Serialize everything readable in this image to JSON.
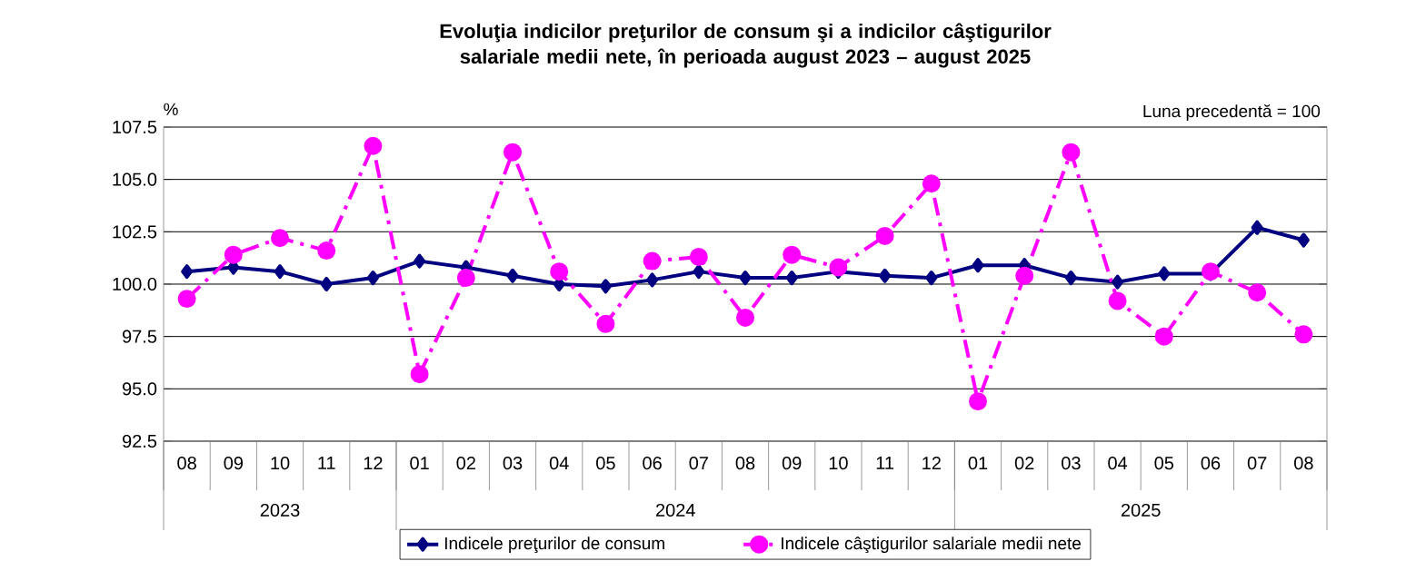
{
  "chart_data": {
    "type": "line",
    "title": "Evoluţia indicilor preţurilor de consum şi a indicilor câştigurilor salariale medii nete, în perioada august 2023 – august 2025",
    "ylabel": "%",
    "categories": [
      "08",
      "09",
      "10",
      "11",
      "12",
      "01",
      "02",
      "03",
      "04",
      "05",
      "06",
      "07",
      "08",
      "09",
      "10",
      "11",
      "12",
      "01",
      "02",
      "03",
      "04",
      "05",
      "06",
      "07",
      "08"
    ],
    "annotations": [
      "Luna precedentă = 100",
      "2023",
      "2024",
      "2025"
    ],
    "series": [
      {
        "name": "Indicele preţurilor de consum",
        "color": "#000080",
        "marker": "diamond",
        "line_style": "solid",
        "values": [
          100.6,
          100.8,
          100.6,
          100.0,
          100.3,
          101.1,
          100.8,
          100.4,
          100.0,
          99.9,
          100.2,
          100.6,
          100.3,
          100.3,
          100.6,
          100.4,
          100.3,
          100.9,
          100.9,
          100.3,
          100.1,
          100.5,
          100.5,
          102.7,
          102.1
        ]
      },
      {
        "name": "Indicele câştigurilor salariale medii nete",
        "color": "#ff00ff",
        "marker": "circle",
        "line_style": "dashed",
        "values": [
          99.3,
          101.4,
          102.2,
          101.6,
          106.6,
          95.7,
          100.3,
          106.3,
          100.6,
          98.1,
          101.1,
          101.3,
          98.4,
          101.4,
          100.8,
          102.3,
          104.8,
          94.4,
          100.4,
          106.3,
          99.2,
          97.5,
          100.6,
          99.6,
          97.6
        ]
      }
    ],
    "ylim": [
      92.5,
      107.5
    ],
    "yticks": [
      92.5,
      {
        "value": 95,
        "label": "95.0"
      },
      97.5,
      {
        "value": 100,
        "label": "100.0"
      },
      102.5,
      {
        "value": 105,
        "label": "105.0"
      },
      107.5
    ],
    "grid": "y",
    "legend": "bottom"
  }
}
